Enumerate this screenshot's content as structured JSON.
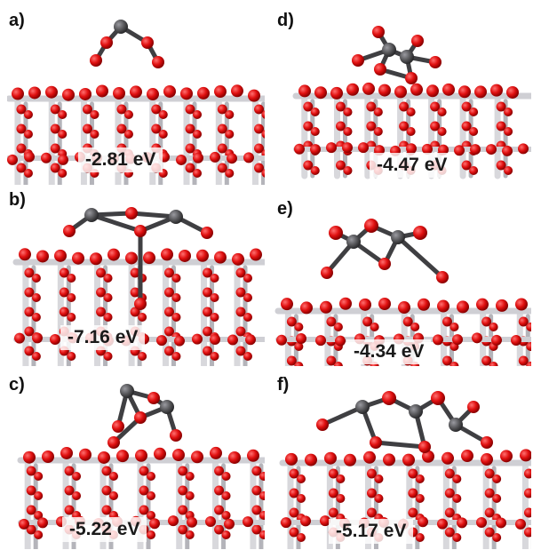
{
  "panels": [
    {
      "id": "a",
      "label": "a)",
      "energy": "-2.81 eV"
    },
    {
      "id": "b",
      "label": "b)",
      "energy": "-7.16 eV"
    },
    {
      "id": "c",
      "label": "c)",
      "energy": "-5.22 eV"
    },
    {
      "id": "d",
      "label": "d)",
      "energy": "-4.47 eV"
    },
    {
      "id": "e",
      "label": "e)",
      "energy": "-4.34 eV"
    },
    {
      "id": "f",
      "label": "f)",
      "energy": "-5.17 eV"
    }
  ],
  "colors": {
    "oxygen": "#e01010",
    "oxygen_dark": "#8a0000",
    "titanium": "#c8c8cc",
    "titanium_dark": "#8e8e94",
    "cluster_atom": "#555558"
  },
  "atom_types": [
    "oxygen-atom",
    "titanium-atom",
    "cluster-atom"
  ]
}
